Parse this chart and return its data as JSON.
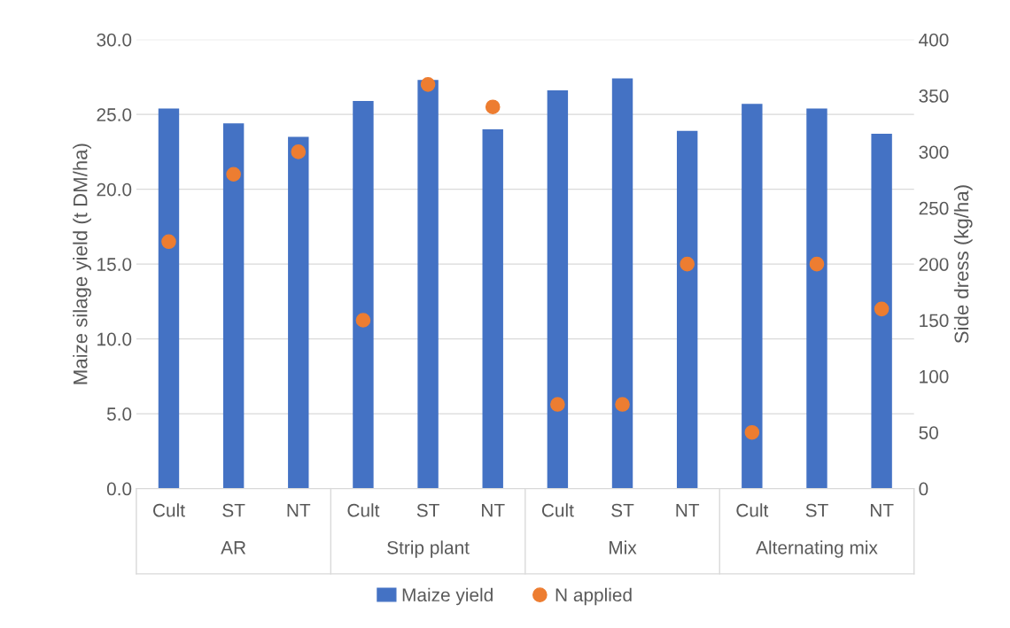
{
  "chart_data": {
    "type": "bar",
    "categories": [
      "Cult",
      "ST",
      "NT",
      "Cult",
      "ST",
      "NT",
      "Cult",
      "ST",
      "NT",
      "Cult",
      "ST",
      "NT"
    ],
    "annotations": [
      "AR",
      "Strip plant",
      "Mix",
      "Alternating mix"
    ],
    "ylabel": "Maize silage yield (t DM/ha)",
    "y2label": "Side dress (kg/ha)",
    "ylim": [
      0,
      30
    ],
    "yticks": [
      {
        "value": 0,
        "label": "0.0"
      },
      {
        "value": 5,
        "label": "5.0"
      },
      {
        "value": 10,
        "label": "10.0"
      },
      {
        "value": 15,
        "label": "15.0"
      },
      {
        "value": 20,
        "label": "20.0"
      },
      {
        "value": 25,
        "label": "25.0"
      },
      {
        "value": 30,
        "label": "30.0"
      }
    ],
    "y2lim": [
      0,
      400
    ],
    "y2ticks": [
      0,
      50,
      100,
      150,
      200,
      250,
      300,
      350,
      400
    ],
    "grid": "y",
    "legend": "bottom",
    "series": [
      {
        "name": "Maize yield",
        "color": "#4472c4",
        "values": [
          25.4,
          24.4,
          23.5,
          25.9,
          27.3,
          24.0,
          26.6,
          27.4,
          23.9,
          25.7,
          25.4,
          23.7
        ]
      },
      {
        "name": "N applied",
        "type": "scatter",
        "axis": "y2",
        "marker": "circle",
        "color": "#ed7d31",
        "values": [
          220,
          280,
          300,
          150,
          360,
          340,
          75,
          75,
          200,
          50,
          200,
          160
        ]
      }
    ]
  }
}
